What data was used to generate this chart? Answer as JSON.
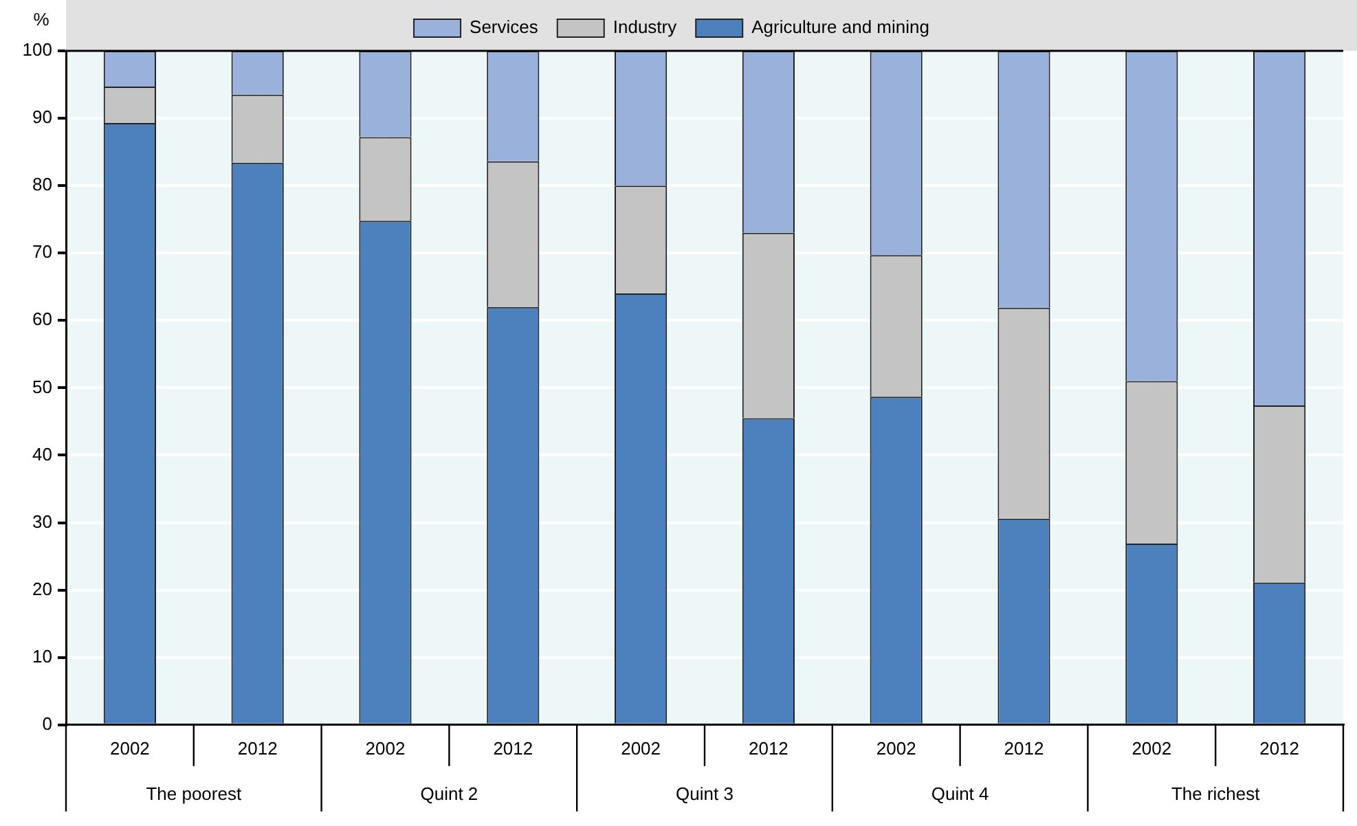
{
  "chart_data": {
    "type": "bar",
    "stacked": true,
    "ylabel": "%",
    "categories": [
      "2002",
      "2012",
      "2002",
      "2012",
      "2002",
      "2012",
      "2002",
      "2012",
      "2002",
      "2012"
    ],
    "annotations": [
      "The poorest",
      "Quint 2",
      "Quint 3",
      "Quint 4",
      "The richest"
    ],
    "series": [
      {
        "name": "Agriculture and mining",
        "color": "#4d81bd",
        "values": [
          89.3,
          83.4,
          74.8,
          62.0,
          64.0,
          45.5,
          48.7,
          30.6,
          26.9,
          21.1
        ]
      },
      {
        "name": "Industry",
        "color": "#c3c4c3",
        "values": [
          5.4,
          10.1,
          12.4,
          21.6,
          16.0,
          27.5,
          21.0,
          31.3,
          24.1,
          26.3
        ]
      },
      {
        "name": "Services",
        "color": "#9ab1db",
        "values": [
          5.3,
          6.5,
          12.8,
          16.4,
          20.0,
          27.0,
          30.3,
          38.1,
          49.0,
          52.6
        ]
      }
    ],
    "ylim": [
      0,
      100
    ],
    "yticks": [
      0,
      10,
      20,
      30,
      40,
      50,
      60,
      70,
      80,
      90,
      100
    ],
    "grid": true,
    "legend": "top"
  }
}
